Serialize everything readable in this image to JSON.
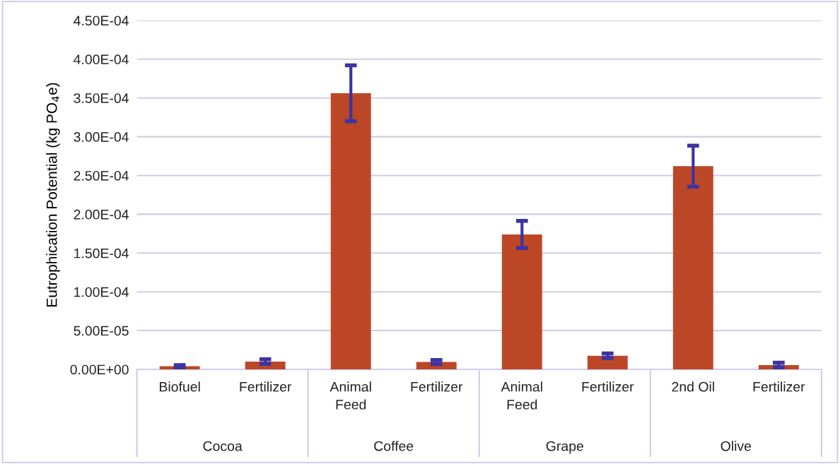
{
  "chart_data": {
    "type": "bar",
    "ylabel": "Eutrophication Potential (kg PO$_{4}$e)",
    "categories": [
      "Biofuel",
      "Fertilizer",
      "Animal\nFeed",
      "Fertilizer",
      "Animal\nFeed",
      "Fertilizer",
      "2nd Oil",
      "Fertilizer"
    ],
    "annotations": [
      "Cocoa",
      "Coffee",
      "Grape",
      "Olive"
    ],
    "values": [
      4e-06,
      1e-05,
      0.000356,
      9.5e-06,
      0.000174,
      1.75e-05,
      0.000262,
      5.5e-06
    ],
    "errors": [
      1.5e-06,
      3e-06,
      3.6e-05,
      2.5e-06,
      1.75e-05,
      3e-06,
      2.65e-05,
      3e-06
    ],
    "color": "#bc4727",
    "ylim": [
      0,
      0.00045
    ],
    "yticks": [
      {
        "value": 0,
        "label": "0.00E+00"
      },
      {
        "value": 5e-05,
        "label": "5.00E-05"
      },
      {
        "value": 0.0001,
        "label": "1.00E-04"
      },
      {
        "value": 0.00015,
        "label": "1.50E-04"
      },
      {
        "value": 0.0002,
        "label": "2.00E-04"
      },
      {
        "value": 0.00025,
        "label": "2.50E-04"
      },
      {
        "value": 0.0003,
        "label": "3.00E-04"
      },
      {
        "value": 0.00035,
        "label": "3.50E-04"
      },
      {
        "value": 0.0004,
        "label": "4.00E-04"
      },
      {
        "value": 0.00045,
        "label": "4.50E-04"
      }
    ],
    "grid": "y"
  }
}
